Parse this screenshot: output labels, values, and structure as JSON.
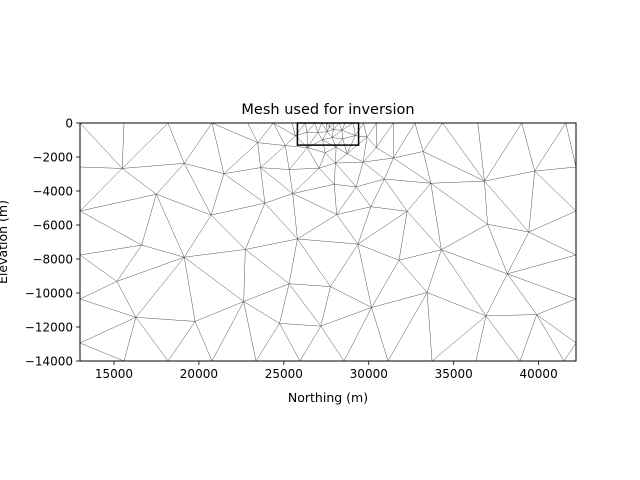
{
  "chart_data": {
    "type": "mesh",
    "title": "Mesh used for inversion",
    "xlabel": "Northing (m)",
    "ylabel": "Elevation (m)",
    "xlim": [
      13000,
      42200
    ],
    "ylim": [
      -14000,
      0
    ],
    "xticks": [
      {
        "value": 15000,
        "label": "15000"
      },
      {
        "value": 20000,
        "label": "20000"
      },
      {
        "value": 25000,
        "label": "25000"
      },
      {
        "value": 30000,
        "label": "30000"
      },
      {
        "value": 35000,
        "label": "35000"
      },
      {
        "value": 40000,
        "label": "40000"
      }
    ],
    "yticks": [
      {
        "value": 0,
        "label": "0"
      },
      {
        "value": -2000,
        "label": "−2000"
      },
      {
        "value": -4000,
        "label": "−4000"
      },
      {
        "value": -6000,
        "label": "−6000"
      },
      {
        "value": -8000,
        "label": "−8000"
      },
      {
        "value": -10000,
        "label": "−10000"
      },
      {
        "value": -12000,
        "label": "−12000"
      },
      {
        "value": -14000,
        "label": "−14000"
      }
    ],
    "grid": false,
    "mesh": {
      "element": "triangle",
      "edge_color": "#404040",
      "refined_region": {
        "x": [
          25800,
          29400
        ],
        "y": [
          -1300,
          0
        ]
      },
      "refinement": "dense near the surface around the refined region, coarsening outward and with depth"
    }
  }
}
